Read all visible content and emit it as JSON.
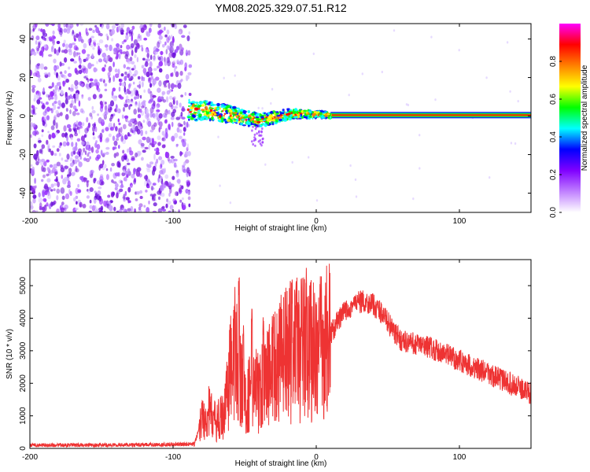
{
  "title": "YM08.2025.329.07.51.R12",
  "chart_data": [
    {
      "type": "heatmap",
      "name": "spectrogram",
      "xlabel": "Height of straight line (km)",
      "ylabel": "Frequency (Hz)",
      "xlim": [
        -200,
        150
      ],
      "ylim": [
        -50,
        48
      ],
      "xticks": [
        -200,
        -100,
        0,
        100
      ],
      "yticks": [
        -40,
        -20,
        0,
        20,
        40
      ],
      "noise_region_x": [
        -200,
        -88
      ],
      "signal_start_x": -90,
      "ridge": [
        {
          "x": -90,
          "y": 3
        },
        {
          "x": -80,
          "y": 3
        },
        {
          "x": -70,
          "y": 2
        },
        {
          "x": -60,
          "y": 1
        },
        {
          "x": -50,
          "y": -1
        },
        {
          "x": -40,
          "y": -2
        },
        {
          "x": -30,
          "y": -1
        },
        {
          "x": -20,
          "y": 1
        },
        {
          "x": -10,
          "y": 1
        },
        {
          "x": 0,
          "y": 1
        },
        {
          "x": 10,
          "y": 0.5
        },
        {
          "x": 150,
          "y": 0.5
        }
      ],
      "colorbar": {
        "label": "Normalized spectral amplitude",
        "range": [
          0,
          1
        ],
        "ticks": [
          "0.0",
          "0.2",
          "0.4",
          "0.6",
          "0.8"
        ],
        "colors": [
          "#ffffff",
          "#c080ff",
          "#8000ff",
          "#0000ff",
          "#00ffff",
          "#00ff00",
          "#ffff00",
          "#ff8000",
          "#ff0000",
          "#ff00ff"
        ]
      }
    },
    {
      "type": "line",
      "name": "snr",
      "xlabel": "Height of straight line (km)",
      "ylabel": "SNR (10 * v/v)",
      "xlim": [
        -200,
        150
      ],
      "ylim": [
        0,
        5800
      ],
      "xticks": [
        -200,
        -100,
        0,
        100
      ],
      "yticks": [
        0,
        1000,
        2000,
        3000,
        4000,
        5000
      ],
      "color": "#ee3333",
      "series": [
        {
          "name": "SNR",
          "envelope": [
            {
              "x": -200,
              "y": 100
            },
            {
              "x": -150,
              "y": 100
            },
            {
              "x": -100,
              "y": 120
            },
            {
              "x": -85,
              "y": 130
            },
            {
              "x": -80,
              "y": 900
            },
            {
              "x": -75,
              "y": 1100
            },
            {
              "x": -70,
              "y": 800
            },
            {
              "x": -65,
              "y": 1000
            },
            {
              "x": -60,
              "y": 2400
            },
            {
              "x": -55,
              "y": 2800
            },
            {
              "x": -50,
              "y": 1300
            },
            {
              "x": -45,
              "y": 2000
            },
            {
              "x": -40,
              "y": 1700
            },
            {
              "x": -35,
              "y": 2200
            },
            {
              "x": -30,
              "y": 2500
            },
            {
              "x": -25,
              "y": 2700
            },
            {
              "x": -20,
              "y": 2900
            },
            {
              "x": -15,
              "y": 3000
            },
            {
              "x": -10,
              "y": 3000
            },
            {
              "x": -5,
              "y": 3100
            },
            {
              "x": 0,
              "y": 3100
            },
            {
              "x": 5,
              "y": 3100
            },
            {
              "x": 10,
              "y": 3500
            },
            {
              "x": 15,
              "y": 3900
            },
            {
              "x": 20,
              "y": 4200
            },
            {
              "x": 25,
              "y": 4400
            },
            {
              "x": 30,
              "y": 4500
            },
            {
              "x": 35,
              "y": 4500
            },
            {
              "x": 40,
              "y": 4400
            },
            {
              "x": 45,
              "y": 4200
            },
            {
              "x": 50,
              "y": 3900
            },
            {
              "x": 55,
              "y": 3500
            },
            {
              "x": 60,
              "y": 3300
            },
            {
              "x": 70,
              "y": 3200
            },
            {
              "x": 80,
              "y": 3100
            },
            {
              "x": 90,
              "y": 2900
            },
            {
              "x": 100,
              "y": 2700
            },
            {
              "x": 110,
              "y": 2500
            },
            {
              "x": 120,
              "y": 2300
            },
            {
              "x": 130,
              "y": 2100
            },
            {
              "x": 140,
              "y": 1900
            },
            {
              "x": 150,
              "y": 1700
            }
          ],
          "spikes": [
            {
              "x": -57,
              "y": 5000
            },
            {
              "x": -54,
              "y": 5400
            },
            {
              "x": -51,
              "y": 4000
            },
            {
              "x": -45,
              "y": 4300
            },
            {
              "x": -37,
              "y": 4100
            },
            {
              "x": -30,
              "y": 4100
            },
            {
              "x": -17,
              "y": 5200
            },
            {
              "x": -14,
              "y": 5600
            },
            {
              "x": -7,
              "y": 5800
            }
          ]
        }
      ]
    }
  ]
}
